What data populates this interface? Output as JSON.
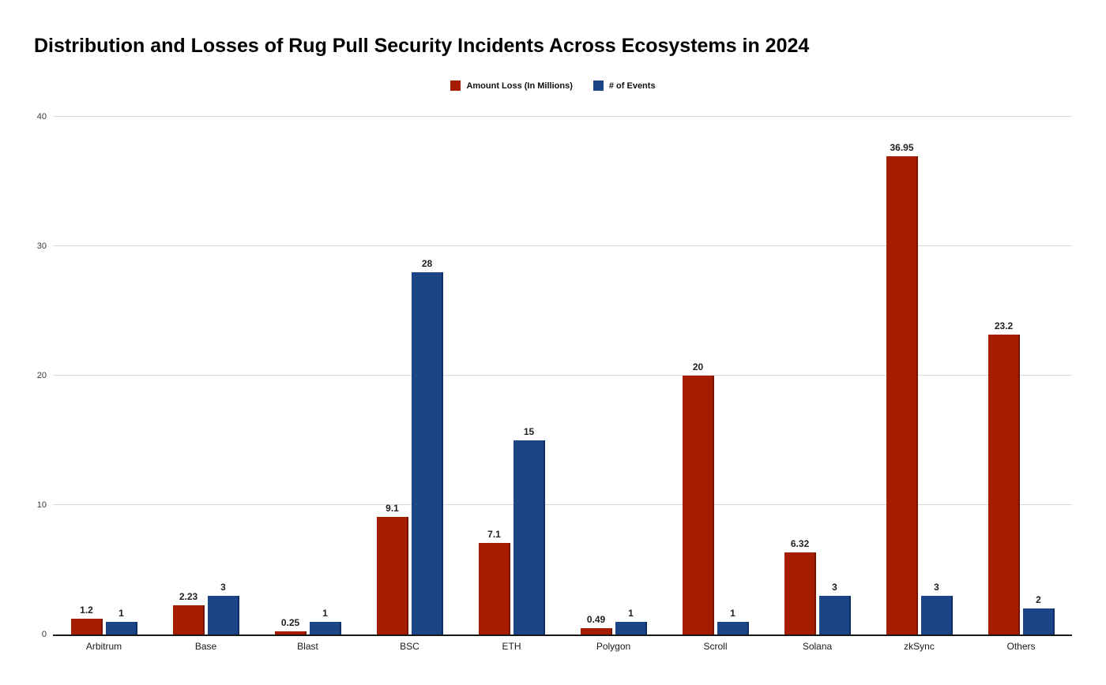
{
  "title": "Distribution and Losses of Rug Pull Security Incidents Across Ecosystems in 2024",
  "colors": {
    "background": "#ffffff",
    "gridline": "#d9d9d9",
    "axis_line": "#1a1a1a",
    "loss_red": "#a61c00",
    "loss_red_edge": "#7a1400",
    "events_blue": "#1c4587",
    "events_blue_edge": "#0e2f63"
  },
  "chart_data": {
    "type": "bar",
    "title": "Distribution and Losses of Rug Pull Security Incidents Across Ecosystems in 2024",
    "categories": [
      "Arbitrum",
      "Base",
      "Blast",
      "BSC",
      "ETH",
      "Polygon",
      "Scroll",
      "Solana",
      "zkSync",
      "Others"
    ],
    "series": [
      {
        "name": "Amount Loss (In Millions)",
        "color": "#a61c00",
        "edge_color": "#7a1400",
        "values": [
          1.2,
          2.23,
          0.25,
          9.1,
          7.1,
          0.49,
          20,
          6.32,
          36.95,
          23.2
        ]
      },
      {
        "name": "# of Events",
        "color": "#1c4587",
        "edge_color": "#0e2f63",
        "values": [
          1,
          3,
          1,
          28,
          15,
          1,
          1,
          3,
          3,
          2
        ]
      }
    ],
    "xlabel": "",
    "ylabel": "",
    "ylim": [
      0,
      40
    ],
    "yticks": [
      0,
      10,
      20,
      30,
      40
    ],
    "grid": true,
    "legend_position": "top",
    "data_labels": true
  }
}
